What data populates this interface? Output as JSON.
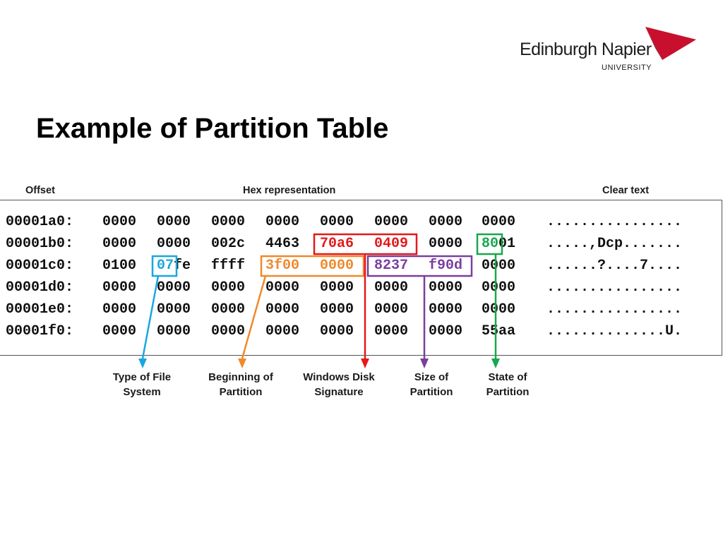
{
  "logo": {
    "name": "Edinburgh Napier",
    "sub": "UNIVERSITY",
    "mark_color": "#c8102e"
  },
  "title": "Example of Partition Table",
  "columns": {
    "offset": "Offset",
    "hex": "Hex representation",
    "clear": "Clear text"
  },
  "dump": {
    "rows": [
      {
        "offset": "00001a0:",
        "words": [
          "0000",
          "0000",
          "0000",
          "0000",
          "0000",
          "0000",
          "0000",
          "0000"
        ],
        "text": "................"
      },
      {
        "offset": "00001b0:",
        "words": [
          "0000",
          "0000",
          "002c",
          "4463",
          "70a6",
          "0409",
          "0000",
          "8001"
        ],
        "text": ".....,Dcp......."
      },
      {
        "offset": "00001c0:",
        "words": [
          "0100",
          "07fe",
          "ffff",
          "3f00",
          "0000",
          "8237",
          "f90d",
          "0000"
        ],
        "text": "......?....7...."
      },
      {
        "offset": "00001d0:",
        "words": [
          "0000",
          "0000",
          "0000",
          "0000",
          "0000",
          "0000",
          "0000",
          "0000"
        ],
        "text": "................"
      },
      {
        "offset": "00001e0:",
        "words": [
          "0000",
          "0000",
          "0000",
          "0000",
          "0000",
          "0000",
          "0000",
          "0000"
        ],
        "text": "................"
      },
      {
        "offset": "00001f0:",
        "words": [
          "0000",
          "0000",
          "0000",
          "0000",
          "0000",
          "0000",
          "0000",
          "55aa"
        ],
        "text": "..............U."
      }
    ]
  },
  "callouts": [
    {
      "line1": "Type of File",
      "line2": "System",
      "color": "#1aa7e0"
    },
    {
      "line1": "Beginning of",
      "line2": "Partition",
      "color": "#f0892c"
    },
    {
      "line1": "Windows Disk",
      "line2": "Signature",
      "color": "#e3191b"
    },
    {
      "line1": "Size of",
      "line2": "Partition",
      "color": "#7b3ea0"
    },
    {
      "line1": "State of",
      "line2": "Partition",
      "color": "#17a84b"
    }
  ]
}
